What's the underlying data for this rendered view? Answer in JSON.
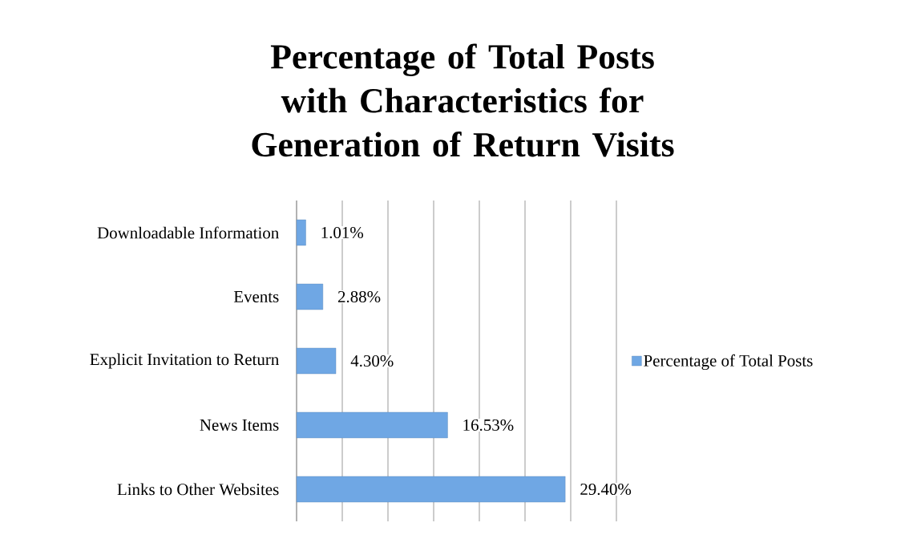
{
  "chart_data": {
    "type": "bar",
    "orientation": "horizontal",
    "title": "Percentage of Total Posts with Characteristics for Generation of Return Visits",
    "categories": [
      "Downloadable Information",
      "Events",
      "Explicit Invitation to Return",
      "News Items",
      "Links to Other Websites"
    ],
    "series": [
      {
        "name": "Percentage of Total Posts",
        "color": "#6fa7e4",
        "values": [
          1.01,
          2.88,
          4.3,
          16.53,
          29.4
        ],
        "value_labels": [
          "1.01%",
          "2.88%",
          "4.30%",
          "16.53%",
          "29.40%"
        ]
      }
    ],
    "xlim": [
      0,
      35
    ],
    "xticks": [
      {
        "value": 0,
        "label": null
      },
      {
        "value": 5,
        "label": null
      },
      {
        "value": 10,
        "label": null
      },
      {
        "value": 15,
        "label": null
      },
      {
        "value": 20,
        "label": null
      },
      {
        "value": 25,
        "label": null
      },
      {
        "value": 30,
        "label": null
      },
      {
        "value": 35,
        "label": null
      }
    ],
    "grid": "x",
    "legend": "right",
    "tick_labels": "y"
  }
}
